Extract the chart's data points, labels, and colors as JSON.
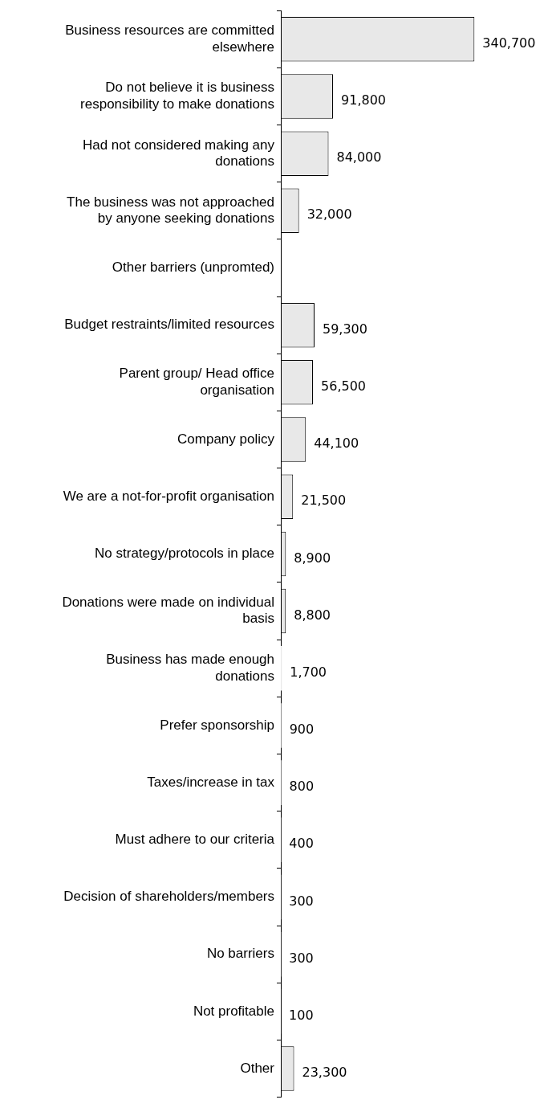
{
  "chart_data": {
    "type": "bar",
    "orientation": "horizontal",
    "categories": [
      "Business resources are committed elsewhere",
      "Do not believe it is business responsibility to make donations",
      "Had not considered making any donations",
      "The business was not approached by anyone seeking donations",
      "Other barriers (unpromted)",
      "Budget restraints/limited resources",
      "Parent group/ Head office organisation",
      "Company policy",
      "We are a not-for-profit organisation",
      "No strategy/protocols in place",
      "Donations were made on individual basis",
      "Business has made enough donations",
      "Prefer sponsorship",
      "Taxes/increase in tax",
      "Must adhere to our criteria",
      "Decision of shareholders/members",
      "No barriers",
      "Not profitable",
      "Other"
    ],
    "values": [
      340700,
      91800,
      84000,
      32000,
      null,
      59300,
      56500,
      44100,
      21500,
      8900,
      8800,
      1700,
      900,
      800,
      400,
      300,
      300,
      100,
      23300
    ],
    "value_labels": [
      "340,700",
      "91,800",
      "84,000",
      "32,000",
      null,
      "59,300",
      "56,500",
      "44,100",
      "21,500",
      "8,900",
      "8,800",
      "1,700",
      "900",
      "800",
      "400",
      "300",
      "300",
      "100",
      "23,300"
    ],
    "color": "#e8e8e8",
    "grid": false,
    "legend": false,
    "tick_labels": "y"
  }
}
